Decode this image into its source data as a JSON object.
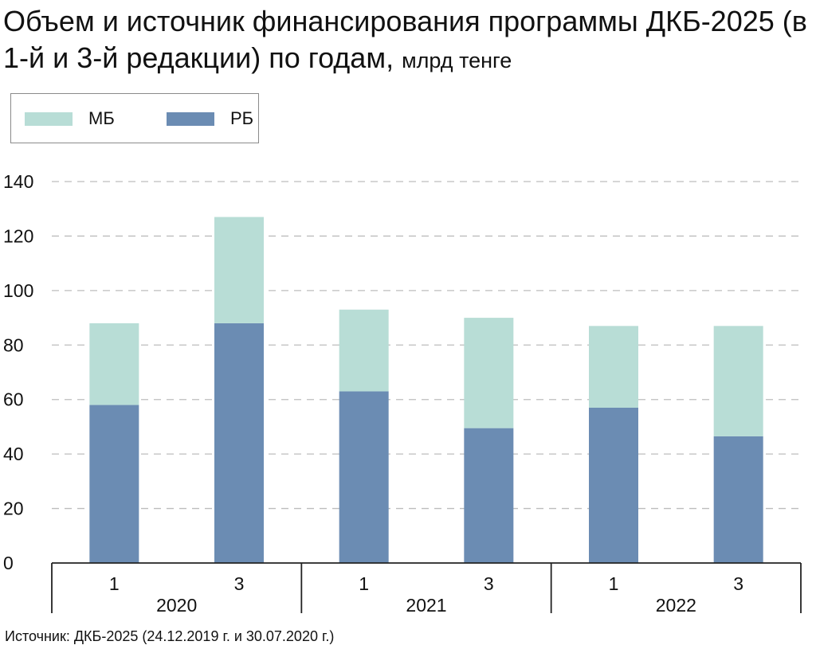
{
  "title": {
    "main": "Объем и источник финансирования программы ДКБ-2025 (в 1-й и 3-й редакции) по годам,",
    "unit": "млрд тенге"
  },
  "legend": {
    "items": [
      {
        "label": "МБ",
        "color": "#b8ddd6"
      },
      {
        "label": "РБ",
        "color": "#6b8cb3"
      }
    ]
  },
  "source": "Источник: ДКБ-2025 (24.12.2019 г. и 30.07.2020 г.)",
  "chart_data": {
    "type": "bar",
    "stacked": true,
    "groups": [
      "2020",
      "2021",
      "2022"
    ],
    "categories": [
      "1",
      "3",
      "1",
      "3",
      "1",
      "3"
    ],
    "series": [
      {
        "name": "РБ",
        "values": [
          58,
          88,
          63,
          49.5,
          57,
          46.5
        ]
      },
      {
        "name": "МБ",
        "values": [
          30,
          39,
          30,
          40.5,
          30,
          40.5
        ]
      }
    ],
    "ylim": [
      0,
      140
    ],
    "yticks": [
      "0",
      "20",
      "40",
      "60",
      "80",
      "100",
      "120",
      "140"
    ],
    "grid": true,
    "legend_position": "top-left"
  }
}
